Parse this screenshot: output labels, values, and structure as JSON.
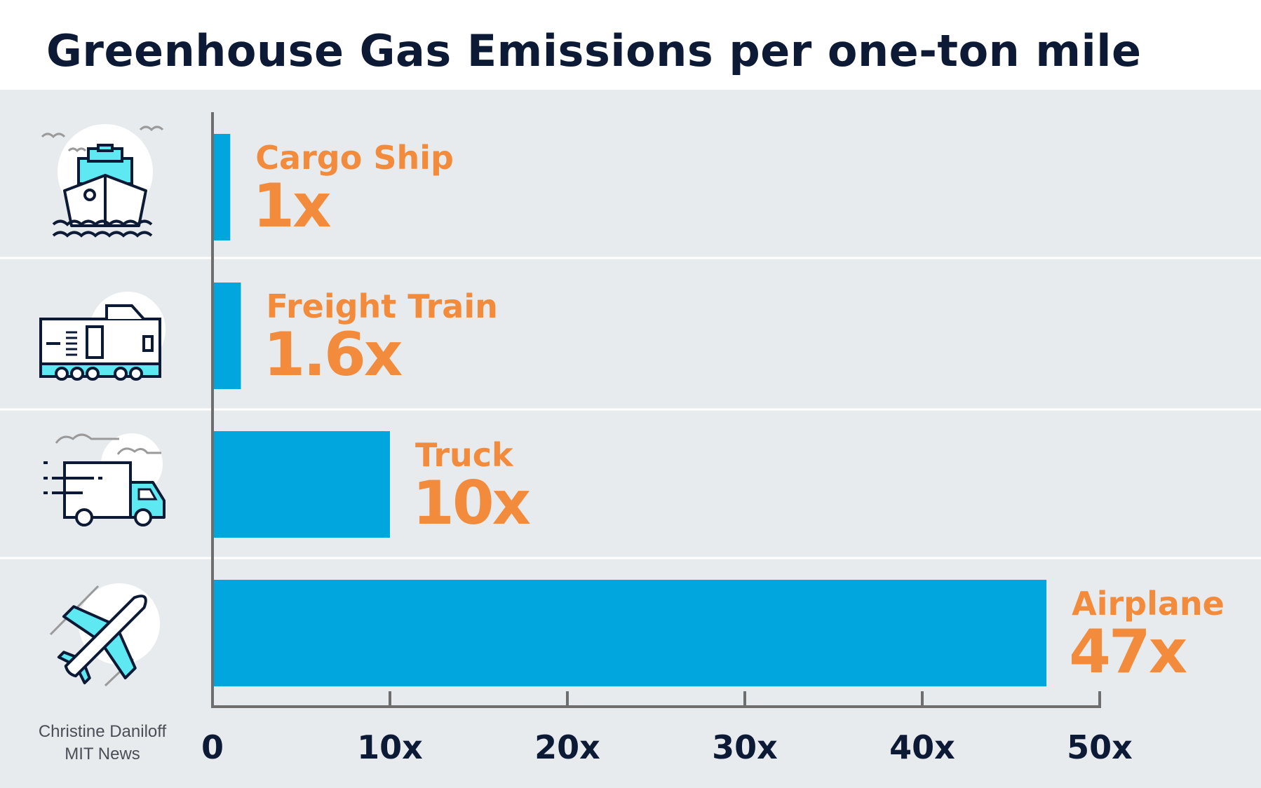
{
  "title": "Greenhouse Gas Emissions per one-ton mile",
  "credit": {
    "line1": "Christine Daniloff",
    "line2": "MIT News"
  },
  "colors": {
    "bar": "#01a6df",
    "label": "#f38b3c",
    "title": "#0d1a36",
    "axis": "#6e6e6e",
    "tick_label": "#0d1a36",
    "panel": "#e8ebee",
    "icon_fill": "#5ee8f2",
    "icon_stroke": "#0d1a36"
  },
  "chart_data": {
    "type": "bar",
    "orientation": "horizontal",
    "categories": [
      "Cargo Ship",
      "Freight Train",
      "Truck",
      "Airplane"
    ],
    "values": [
      1,
      1.6,
      10,
      47
    ],
    "value_labels": [
      "1x",
      "1.6x",
      "10x",
      "47x"
    ],
    "icons": [
      "ship-icon",
      "train-icon",
      "truck-icon",
      "airplane-icon"
    ],
    "xlim": [
      0,
      50
    ],
    "x_ticks": [
      0,
      10,
      20,
      30,
      40,
      50
    ],
    "x_tick_labels": [
      "0",
      "10x",
      "20x",
      "30x",
      "40x",
      "50x"
    ],
    "grid": false,
    "legend": "none"
  }
}
